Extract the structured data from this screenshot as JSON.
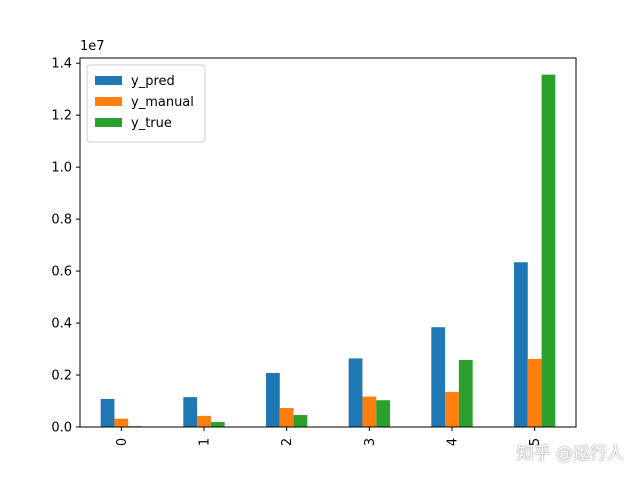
{
  "chart_data": {
    "type": "bar",
    "categories": [
      "0",
      "1",
      "2",
      "3",
      "4",
      "5"
    ],
    "series": [
      {
        "name": "y_pred",
        "color": "#1f77b4",
        "values": [
          1080000,
          1150000,
          2080000,
          2640000,
          3840000,
          6340000
        ]
      },
      {
        "name": "y_manual",
        "color": "#ff7f0e",
        "values": [
          320000,
          430000,
          730000,
          1170000,
          1350000,
          2620000
        ]
      },
      {
        "name": "y_true",
        "color": "#2ca02c",
        "values": [
          30000,
          190000,
          460000,
          1030000,
          2580000,
          13560000
        ]
      }
    ],
    "ylim": [
      0,
      14200000
    ],
    "ytick_values": [
      0,
      2000000,
      4000000,
      6000000,
      8000000,
      10000000,
      12000000,
      14000000
    ],
    "ytick_labels": [
      "0.0",
      "0.2",
      "0.4",
      "0.6",
      "0.8",
      "1.0",
      "1.2",
      "1.4"
    ],
    "y_offset_label": "1e7",
    "xtick_rotation": "vertical",
    "legend_position": "upper left",
    "grid": false
  },
  "watermark": "知乎 @远行人"
}
